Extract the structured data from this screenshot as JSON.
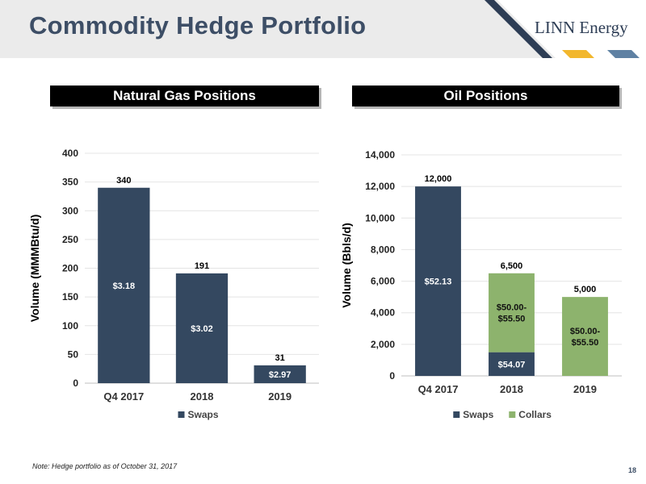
{
  "header": {
    "title": "Commodity Hedge Portfolio",
    "logo_text": "LINN Energy",
    "colors": {
      "dark_navy": "#2d3d55",
      "gold": "#f2b72d",
      "steel_blue": "#5f81a3",
      "band": "#ebebeb"
    }
  },
  "sections": {
    "gas": "Natural Gas Positions",
    "oil": "Oil Positions"
  },
  "footnote": "Note: Hedge portfolio as of October 31, 2017",
  "page_number": "18",
  "chart_data": [
    {
      "type": "bar",
      "title": "Natural Gas Positions",
      "ylabel": "Volume (MMMBtu/d)",
      "categories": [
        "Q4 2017",
        "2018",
        "2019"
      ],
      "ylim": [
        0,
        400
      ],
      "yticks": [
        0,
        50,
        100,
        150,
        200,
        250,
        300,
        350,
        400
      ],
      "ytick_labels": [
        "0",
        "50",
        "100",
        "150",
        "200",
        "250",
        "300",
        "350",
        "400"
      ],
      "series": [
        {
          "name": "Swaps",
          "color": "#344860",
          "values": [
            340,
            191,
            31
          ],
          "price_labels": [
            "$3.18",
            "$3.02",
            "$2.97"
          ]
        }
      ],
      "total_labels": [
        "340",
        "191",
        "31"
      ],
      "legend": "bottom",
      "grid": true
    },
    {
      "type": "bar",
      "stacked": true,
      "title": "Oil Positions",
      "ylabel": "Volume (Bbls/d)",
      "categories": [
        "Q4 2017",
        "2018",
        "2019"
      ],
      "ylim": [
        0,
        14000
      ],
      "yticks": [
        0,
        2000,
        4000,
        6000,
        8000,
        10000,
        12000,
        14000
      ],
      "ytick_labels": [
        "0",
        "2,000",
        "4,000",
        "6,000",
        "8,000",
        "10,000",
        "12,000",
        "14,000"
      ],
      "series": [
        {
          "name": "Swaps",
          "color": "#344860",
          "values": [
            12000,
            1500,
            0
          ],
          "price_labels": [
            "$52.13",
            "$54.07",
            ""
          ]
        },
        {
          "name": "Collars",
          "color": "#8db36d",
          "values": [
            0,
            5000,
            5000
          ],
          "price_labels": [
            "",
            "$50.00-\n$55.50",
            "$50.00-\n$55.50"
          ]
        }
      ],
      "total_labels": [
        "12,000",
        "6,500",
        "5,000"
      ],
      "legend": "bottom",
      "grid": true
    }
  ]
}
